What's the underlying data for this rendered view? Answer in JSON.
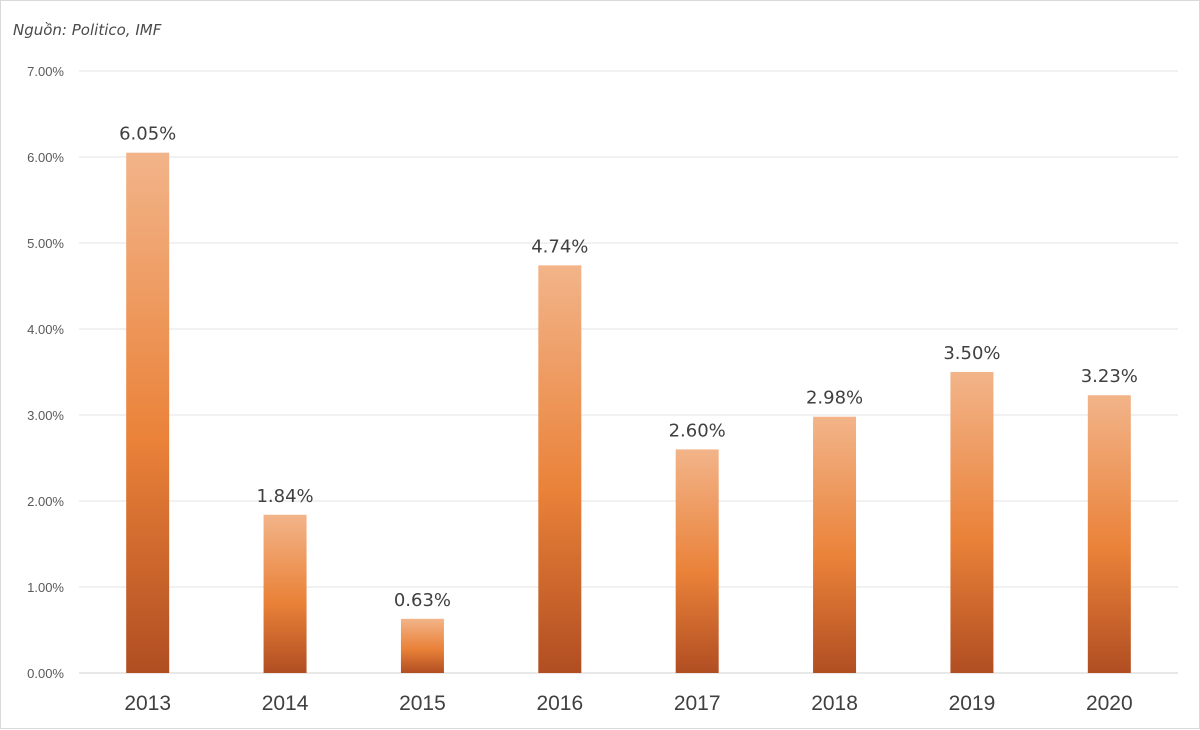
{
  "source_note": "Nguồn: Politico, IMF",
  "chart_data": {
    "type": "bar",
    "title": "",
    "xlabel": "",
    "ylabel": "",
    "categories": [
      "2013",
      "2014",
      "2015",
      "2016",
      "2017",
      "2018",
      "2019",
      "2020"
    ],
    "values": [
      6.05,
      1.84,
      0.63,
      4.74,
      2.6,
      2.98,
      3.5,
      3.23
    ],
    "data_labels": [
      "6.05%",
      "1.84%",
      "0.63%",
      "4.74%",
      "2.60%",
      "2.98%",
      "3.50%",
      "3.23%"
    ],
    "ylim": [
      0,
      7
    ],
    "yticks": [
      0,
      1,
      2,
      3,
      4,
      5,
      6,
      7
    ],
    "ytick_labels": [
      "0.00%",
      "1.00%",
      "2.00%",
      "3.00%",
      "4.00%",
      "5.00%",
      "6.00%",
      "7.00%"
    ],
    "grid": true,
    "legend": "none",
    "colors": {
      "bar_top": "#f2b489",
      "bar_mid": "#ea8239",
      "bar_bottom": "#b14e22"
    }
  }
}
